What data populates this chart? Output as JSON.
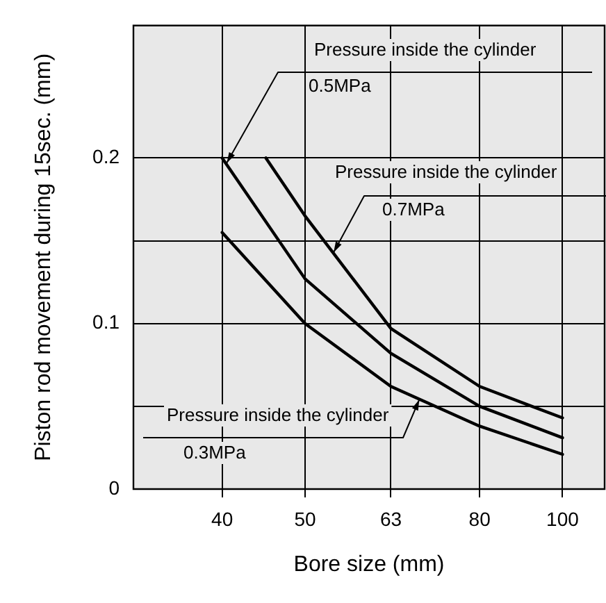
{
  "chart_data": {
    "type": "line",
    "xlabel": "Bore size (mm)",
    "ylabel": "Piston rod movement during 15sec. (mm)",
    "log": "x",
    "xlim": [
      31.5,
      112
    ],
    "xticks": [
      40,
      50,
      63,
      80,
      100
    ],
    "ylim": [
      0,
      0.28
    ],
    "yticks": [
      0,
      {
        "value": 0.05,
        "label": null
      },
      0.1,
      {
        "value": 0.15,
        "label": null
      },
      0.2
    ],
    "grid": true,
    "legend": false,
    "marker": "none",
    "line_style": "solid",
    "series": [
      {
        "color": "#000000",
        "x": [
          40,
          50,
          63,
          80,
          100
        ],
        "values": [
          0.2,
          0.127,
          0.082,
          0.05,
          0.031
        ]
      },
      {
        "color": "#000000",
        "x": [
          45,
          50,
          63,
          80,
          100
        ],
        "values": [
          0.2,
          0.165,
          0.097,
          0.062,
          0.043
        ]
      },
      {
        "color": "#000000",
        "x": [
          40,
          50,
          63,
          80,
          100
        ],
        "values": [
          0.155,
          0.1,
          0.062,
          0.038,
          0.021
        ]
      }
    ],
    "annotations": [
      {
        "text": "Pressure inside the cylinder\n0.5MPa",
        "x": 40.5,
        "y": 0.197
      },
      {
        "text": "Pressure inside the cylinder\n0.7MPa",
        "x": 54,
        "y": 0.143
      },
      {
        "text": "Pressure inside the cylinder\n0.3MPa",
        "x": 68,
        "y": 0.054
      }
    ]
  }
}
